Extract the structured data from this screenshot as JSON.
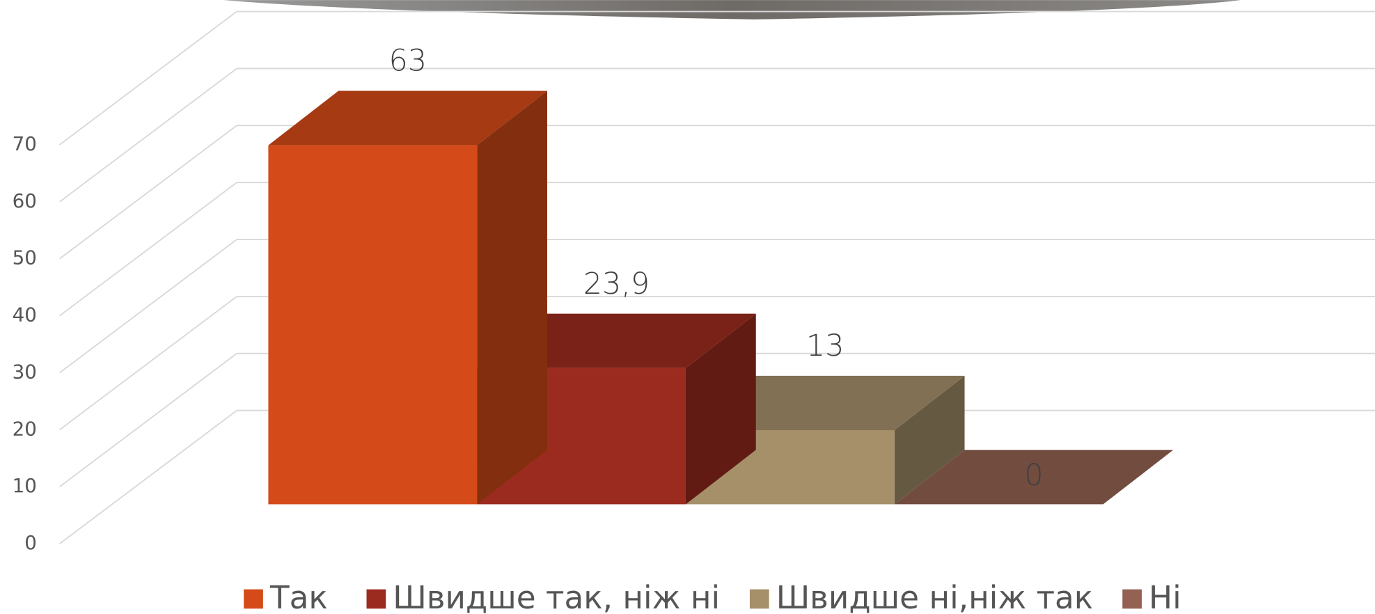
{
  "chart_data": {
    "type": "bar3d",
    "series": [
      {
        "name": "Так",
        "color": "#d44a18",
        "values": [
          63
        ],
        "value_labels": [
          "63"
        ]
      },
      {
        "name": "Швидше так, ніж ні",
        "color": "#9c2b1f",
        "values": [
          23.9
        ],
        "value_labels": [
          "23,9"
        ]
      },
      {
        "name": "Швидше ні,ніж так",
        "color": "#a5906a",
        "values": [
          13
        ],
        "value_labels": [
          "13"
        ]
      },
      {
        "name": "Ні",
        "color": "#946152",
        "values": [
          0
        ],
        "value_labels": [
          "0"
        ]
      }
    ],
    "ylim": [
      0,
      70
    ],
    "yticks": [
      0,
      10,
      20,
      30,
      40,
      50,
      60,
      70
    ],
    "grid": true
  }
}
